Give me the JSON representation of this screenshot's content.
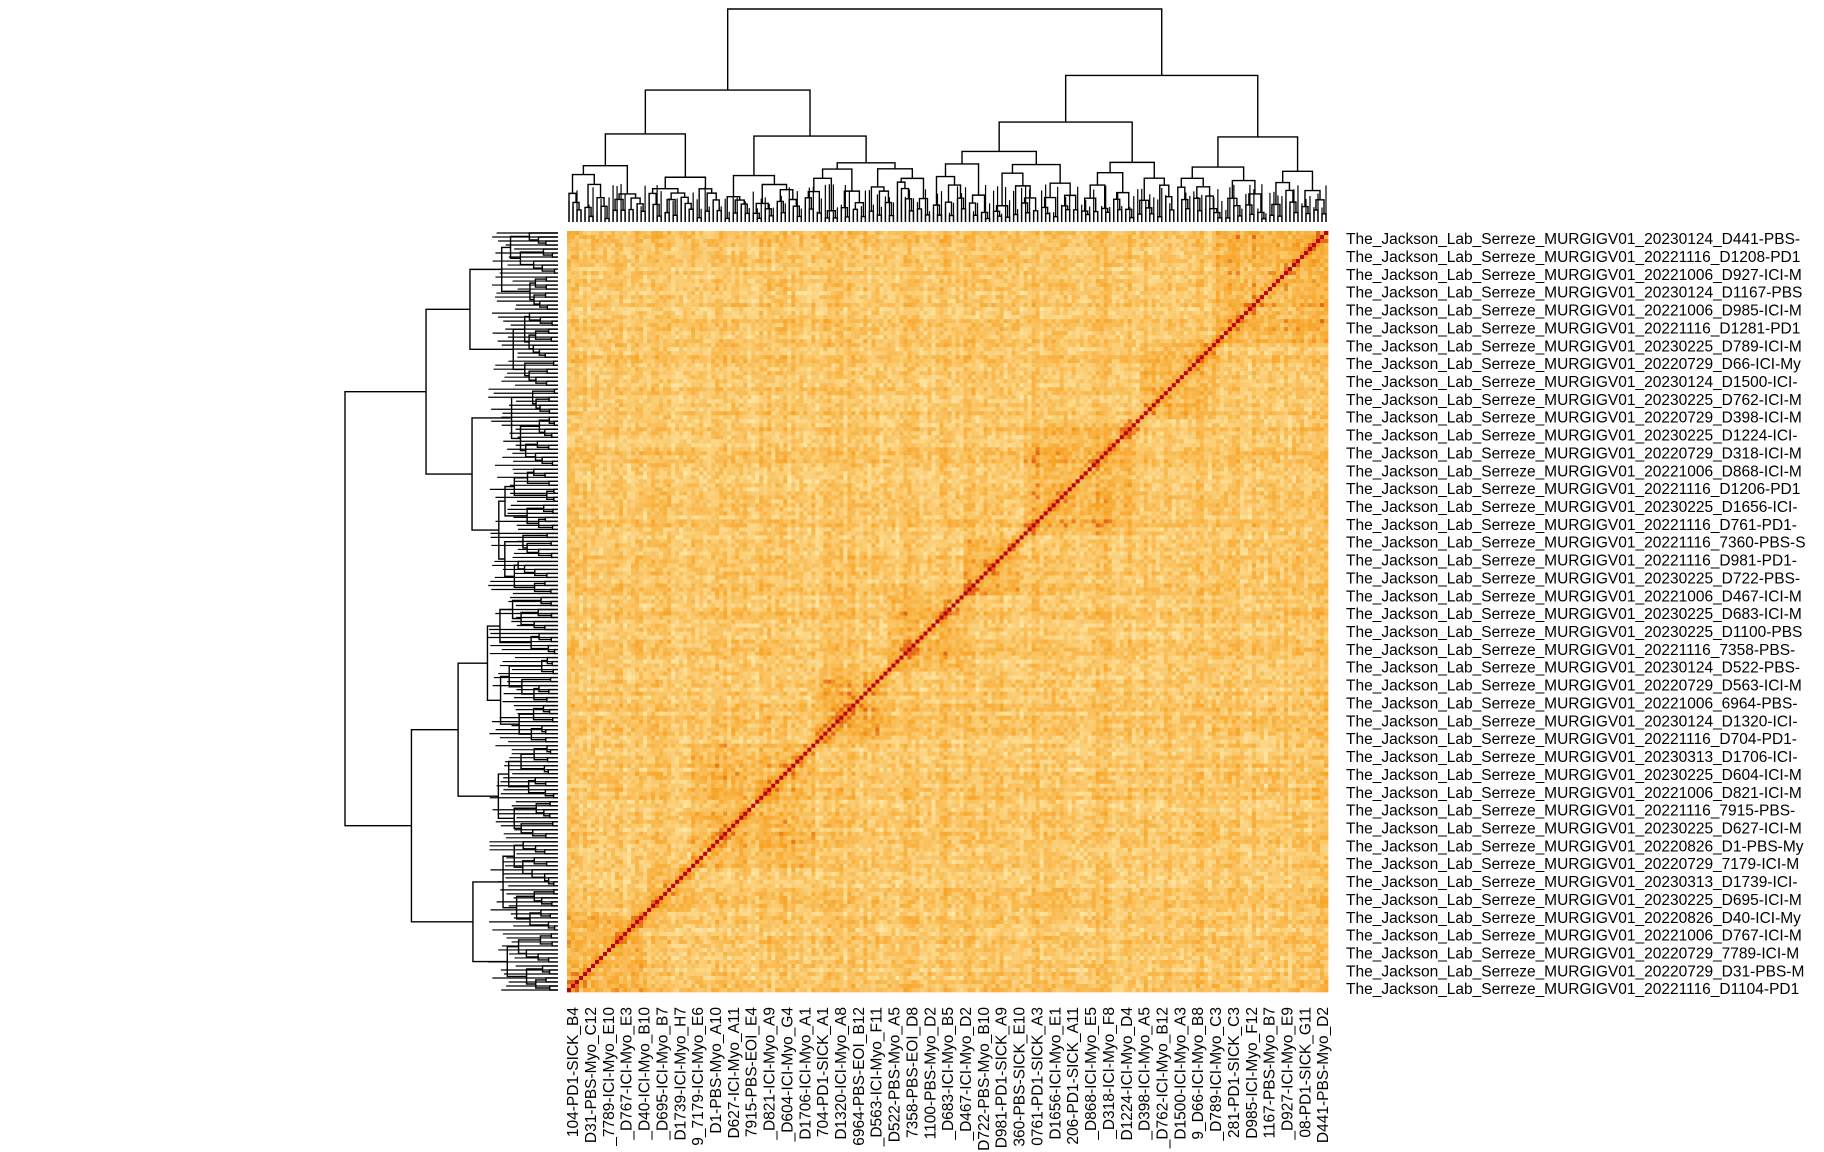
{
  "chart_data": {
    "type": "heatmap",
    "title": "",
    "xlabel": "",
    "ylabel": "",
    "legend": "none",
    "color_scale": {
      "low": "#fff6c2",
      "mid": "#f7a325",
      "high": "#bd0000"
    },
    "diagonal_value": 1.0,
    "dendrograms": {
      "top": true,
      "left": true
    },
    "row_labels": [
      "The_Jackson_Lab_Serreze_MURGIGV01_20230124_D441-PBS-",
      "The_Jackson_Lab_Serreze_MURGIGV01_20221116_D1208-PD1",
      "The_Jackson_Lab_Serreze_MURGIGV01_20221006_D927-ICI-M",
      "The_Jackson_Lab_Serreze_MURGIGV01_20230124_D1167-PBS",
      "The_Jackson_Lab_Serreze_MURGIGV01_20221006_D985-ICI-M",
      "The_Jackson_Lab_Serreze_MURGIGV01_20221116_D1281-PD1",
      "The_Jackson_Lab_Serreze_MURGIGV01_20230225_D789-ICI-M",
      "The_Jackson_Lab_Serreze_MURGIGV01_20220729_D66-ICI-My",
      "The_Jackson_Lab_Serreze_MURGIGV01_20230124_D1500-ICI-",
      "The_Jackson_Lab_Serreze_MURGIGV01_20230225_D762-ICI-M",
      "The_Jackson_Lab_Serreze_MURGIGV01_20220729_D398-ICI-M",
      "The_Jackson_Lab_Serreze_MURGIGV01_20230225_D1224-ICI-",
      "The_Jackson_Lab_Serreze_MURGIGV01_20220729_D318-ICI-M",
      "The_Jackson_Lab_Serreze_MURGIGV01_20221006_D868-ICI-M",
      "The_Jackson_Lab_Serreze_MURGIGV01_20221116_D1206-PD1",
      "The_Jackson_Lab_Serreze_MURGIGV01_20230225_D1656-ICI-",
      "The_Jackson_Lab_Serreze_MURGIGV01_20221116_D761-PD1-",
      "The_Jackson_Lab_Serreze_MURGIGV01_20221116_7360-PBS-S",
      "The_Jackson_Lab_Serreze_MURGIGV01_20221116_D981-PD1-",
      "The_Jackson_Lab_Serreze_MURGIGV01_20230225_D722-PBS-",
      "The_Jackson_Lab_Serreze_MURGIGV01_20221006_D467-ICI-M",
      "The_Jackson_Lab_Serreze_MURGIGV01_20230225_D683-ICI-M",
      "The_Jackson_Lab_Serreze_MURGIGV01_20230225_D1100-PBS",
      "The_Jackson_Lab_Serreze_MURGIGV01_20221116_7358-PBS-",
      "The_Jackson_Lab_Serreze_MURGIGV01_20230124_D522-PBS-",
      "The_Jackson_Lab_Serreze_MURGIGV01_20220729_D563-ICI-M",
      "The_Jackson_Lab_Serreze_MURGIGV01_20221006_6964-PBS-",
      "The_Jackson_Lab_Serreze_MURGIGV01_20230124_D1320-ICI-",
      "The_Jackson_Lab_Serreze_MURGIGV01_20221116_D704-PD1-",
      "The_Jackson_Lab_Serreze_MURGIGV01_20230313_D1706-ICI-",
      "The_Jackson_Lab_Serreze_MURGIGV01_20230225_D604-ICI-M",
      "The_Jackson_Lab_Serreze_MURGIGV01_20221006_D821-ICI-M",
      "The_Jackson_Lab_Serreze_MURGIGV01_20221116_7915-PBS-",
      "The_Jackson_Lab_Serreze_MURGIGV01_20230225_D627-ICI-M",
      "The_Jackson_Lab_Serreze_MURGIGV01_20220826_D1-PBS-My",
      "The_Jackson_Lab_Serreze_MURGIGV01_20220729_7179-ICI-M",
      "The_Jackson_Lab_Serreze_MURGIGV01_20230313_D1739-ICI-",
      "The_Jackson_Lab_Serreze_MURGIGV01_20230225_D695-ICI-M",
      "The_Jackson_Lab_Serreze_MURGIGV01_20220826_D40-ICI-My",
      "The_Jackson_Lab_Serreze_MURGIGV01_20221006_D767-ICI-M",
      "The_Jackson_Lab_Serreze_MURGIGV01_20220729_7789-ICI-M",
      "The_Jackson_Lab_Serreze_MURGIGV01_20220729_D31-PBS-M",
      "The_Jackson_Lab_Serreze_MURGIGV01_20221116_D1104-PD1"
    ],
    "col_labels": [
      "104-PD1-SICK_B4",
      "D31-PBS-Myo_C12",
      "_7789-ICI-Myo_E10",
      "_D767-ICI-Myo_E3",
      "_D40-ICI-Myo_B10",
      "_D695-ICI-Myo_B7",
      "D1739-ICI-Myo_H7",
      "9_7179-ICI-Myo_E6",
      "D1-PBS-Myo_A10",
      "D627-ICI-Myo_A11",
      "7915-PBS-EOI_E4",
      "_D821-ICI-Myo_A9",
      "_D604-ICI-Myo_G4",
      "D1706-ICI-Myo_A1",
      "704-PD1-SICK_A1",
      "D1320-ICI-Myo_A8",
      "6964-PBS-EOI_B12",
      "_D563-ICI-Myo_F11",
      "D522-PBS-Myo_A5",
      "7358-PBS-EOI_D8",
      "1100-PBS-Myo_D2",
      "_D683-ICI-Myo_B5",
      "_D467-ICI-Myo_D2",
      "D722-PBS-Myo_B10",
      "D981-PD1-SICK_A9",
      "360-PBS-SICK_E10",
      "0761-PD1-SICK_A3",
      "D1656-ICI-Myo_E1",
      "206-PD1-SICK_A11",
      "_D868-ICI-Myo_E5",
      "_D318-ICI-Myo_F8",
      "D1224-ICI-Myo_D4",
      "_D398-ICI-Myo_A5",
      "_D762-ICI-Myo_B12",
      "D1500-ICI-Myo_A3",
      "9_D66-ICI-Myo_B8",
      "_D789-ICI-Myo_C3",
      "281-PD1-SICK_C3",
      "D985-ICI-Myo_F12",
      "1167-PBS-Myo_B7",
      "_D927-ICI-Myo_E9",
      "08-PD1-SICK_G11",
      "D441-PBS-Myo_D2"
    ]
  }
}
